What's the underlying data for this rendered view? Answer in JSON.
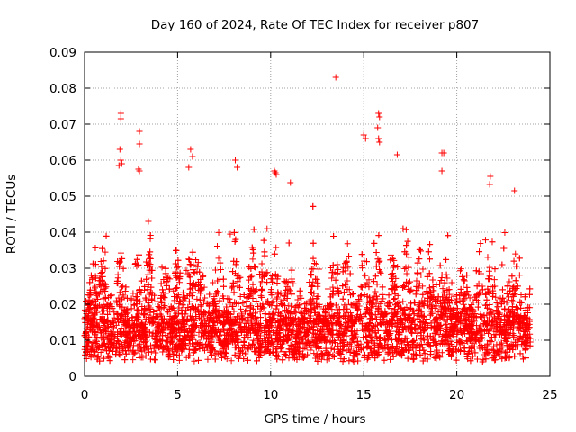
{
  "chart_data": {
    "type": "scatter",
    "title": "Day 160 of 2024, Rate Of TEC Index for receiver p807",
    "xlabel": "GPS time / hours",
    "ylabel": "ROTI / TECUs",
    "xlim": [
      0,
      25
    ],
    "ylim": [
      0,
      0.09
    ],
    "x_ticks": [
      0,
      5,
      10,
      15,
      20,
      25
    ],
    "x_tick_labels": [
      "0",
      "5",
      "10",
      "15",
      "20",
      "25"
    ],
    "y_ticks": [
      0,
      0.01,
      0.02,
      0.03,
      0.04,
      0.05,
      0.06,
      0.07,
      0.08,
      0.09
    ],
    "y_tick_labels": [
      "0",
      "0.01",
      "0.02",
      "0.03",
      "0.04",
      "0.05",
      "0.06",
      "0.07",
      "0.08",
      "0.09"
    ],
    "grid": true,
    "marker": "+",
    "color": "#ff0000",
    "series": [
      {
        "name": "ROTI",
        "note": "dense cloud of ~several thousand points between 0 and 24 h, mostly 0.003-0.03 TECU; notable outliers listed",
        "points": [
          [
            1.95,
            0.073
          ],
          [
            1.95,
            0.0715
          ],
          [
            1.9,
            0.063
          ],
          [
            1.95,
            0.06
          ],
          [
            2.0,
            0.059
          ],
          [
            1.85,
            0.0585
          ],
          [
            2.95,
            0.068
          ],
          [
            2.95,
            0.0645
          ],
          [
            2.9,
            0.0575
          ],
          [
            2.95,
            0.057
          ],
          [
            5.7,
            0.063
          ],
          [
            5.8,
            0.061
          ],
          [
            5.6,
            0.058
          ],
          [
            8.1,
            0.06
          ],
          [
            8.2,
            0.058
          ],
          [
            10.2,
            0.057
          ],
          [
            10.3,
            0.056
          ],
          [
            10.25,
            0.0565
          ],
          [
            13.5,
            0.083
          ],
          [
            15.0,
            0.067
          ],
          [
            15.1,
            0.066
          ],
          [
            15.8,
            0.073
          ],
          [
            15.85,
            0.072
          ],
          [
            15.75,
            0.069
          ],
          [
            15.8,
            0.066
          ],
          [
            15.85,
            0.065
          ],
          [
            16.8,
            0.0615
          ],
          [
            19.2,
            0.062
          ],
          [
            19.3,
            0.062
          ],
          [
            19.2,
            0.057
          ],
          [
            21.8,
            0.0555
          ],
          [
            23.1,
            0.0515
          ]
        ]
      }
    ]
  }
}
